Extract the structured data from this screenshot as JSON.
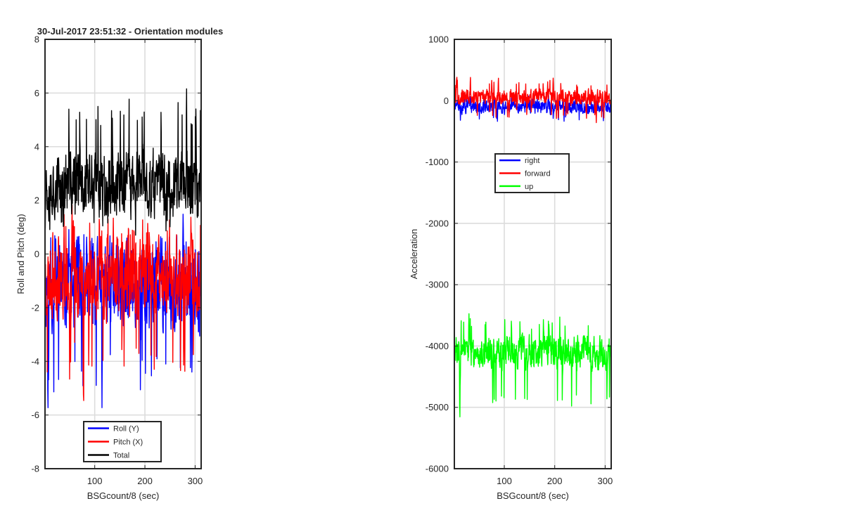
{
  "chart_data": [
    {
      "type": "line",
      "title": "30-Jul-2017 23:51:32 - Orientation modules",
      "xlabel": "BSGcount/8 (sec)",
      "ylabel": "Roll and Pitch (deg)",
      "xlim": [
        1,
        312
      ],
      "ylim": [
        -8,
        8
      ],
      "xticks": [
        100,
        200,
        300
      ],
      "yticks": [
        -8,
        -6,
        -4,
        -2,
        0,
        2,
        4,
        6,
        8
      ],
      "grid": true,
      "legend_location": "bottom-center",
      "series": [
        {
          "name": "Roll (Y)",
          "color": "#0000ff",
          "center": -1.2,
          "spread": 2.2,
          "min": -6.7,
          "max": 2.0,
          "seed": 11
        },
        {
          "name": "Pitch (X)",
          "color": "#ff0000",
          "center": -0.9,
          "spread": 1.9,
          "min": -6.0,
          "max": 2.2,
          "seed": 23
        },
        {
          "name": "Total",
          "color": "#000000",
          "center": 2.6,
          "spread": 1.6,
          "min": 0.2,
          "max": 6.9,
          "seed": 37
        }
      ]
    },
    {
      "type": "line",
      "title": "",
      "xlabel": "BSGcount/8 (sec)",
      "ylabel": "Acceleration",
      "xlim": [
        1,
        312
      ],
      "ylim": [
        -6000,
        1000
      ],
      "xticks": [
        100,
        200,
        300
      ],
      "yticks": [
        -6000,
        -5000,
        -4000,
        -3000,
        -2000,
        -1000,
        0,
        1000
      ],
      "grid": true,
      "legend_location": "center",
      "series": [
        {
          "name": "right",
          "color": "#0000ff",
          "center": -100,
          "spread": 150,
          "min": -450,
          "max": 150,
          "seed": 51
        },
        {
          "name": "forward",
          "color": "#ff0000",
          "center": 60,
          "spread": 160,
          "min": -420,
          "max": 420,
          "seed": 67
        },
        {
          "name": "up",
          "color": "#00ff00",
          "center": -4100,
          "spread": 350,
          "min": -5350,
          "max": -3300,
          "seed": 83
        }
      ]
    }
  ]
}
